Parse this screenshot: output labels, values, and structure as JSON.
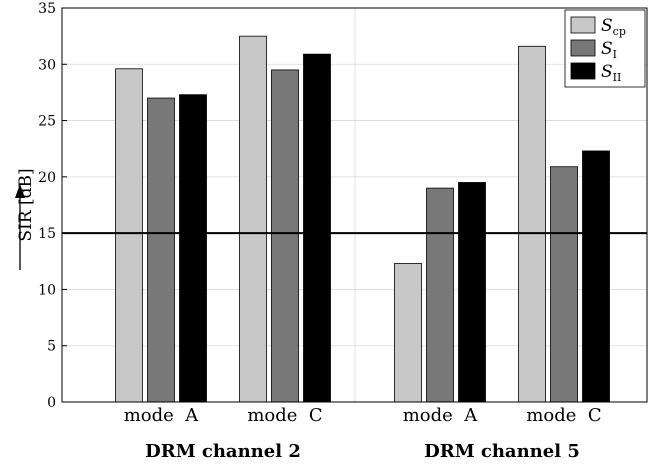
{
  "chart_data": {
    "type": "bar",
    "ylabel": "SIR [dB]",
    "ylim": [
      0,
      35
    ],
    "yticks": [
      0,
      5,
      10,
      15,
      20,
      25,
      30,
      35
    ],
    "grid": true,
    "legend_position": "top-right",
    "threshold": 15,
    "groups": [
      {
        "label": "DRM channel 2",
        "categories": [
          "mode  A",
          "mode  C"
        ]
      },
      {
        "label": "DRM channel 5",
        "categories": [
          "mode  A",
          "mode  C"
        ]
      }
    ],
    "series": [
      {
        "name": "S",
        "sub": "cp",
        "color": "#c8c8c8",
        "values": [
          29.6,
          32.5,
          12.3,
          31.6
        ]
      },
      {
        "name": "S",
        "sub": "I",
        "color": "#787878",
        "values": [
          27.0,
          29.5,
          19.0,
          20.9
        ]
      },
      {
        "name": "S",
        "sub": "II",
        "color": "#000000",
        "values": [
          27.3,
          30.9,
          19.5,
          22.3
        ]
      }
    ]
  }
}
